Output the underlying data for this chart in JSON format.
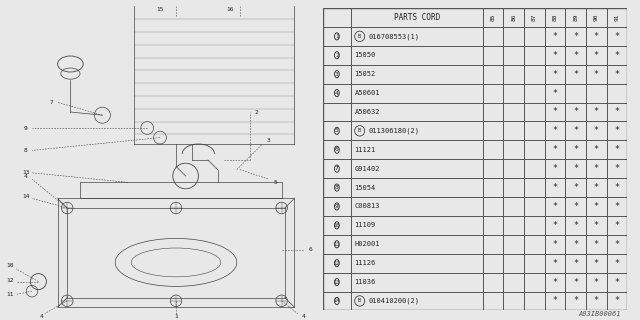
{
  "watermark": "A03IB00061",
  "years": [
    "85",
    "86",
    "87",
    "88",
    "89",
    "90",
    "91"
  ],
  "rows": [
    {
      "num": "1",
      "b": true,
      "part": "016708553(1)",
      "cols": [
        "",
        "",
        "",
        "*",
        "*",
        "*",
        "*"
      ]
    },
    {
      "num": "2",
      "b": false,
      "part": "15050",
      "cols": [
        "",
        "",
        "",
        "*",
        "*",
        "*",
        "*"
      ]
    },
    {
      "num": "3",
      "b": false,
      "part": "15052",
      "cols": [
        "",
        "",
        "",
        "*",
        "*",
        "*",
        "*"
      ]
    },
    {
      "num": "4",
      "b": false,
      "part": "A50601",
      "cols": [
        "",
        "",
        "",
        "*",
        "",
        "",
        ""
      ],
      "sub": false
    },
    {
      "num": "",
      "b": false,
      "part": "A50632",
      "cols": [
        "",
        "",
        "",
        "*",
        "*",
        "*",
        "*"
      ],
      "sub": true
    },
    {
      "num": "5",
      "b": true,
      "part": "011306180(2)",
      "cols": [
        "",
        "",
        "",
        "*",
        "*",
        "*",
        "*"
      ]
    },
    {
      "num": "6",
      "b": false,
      "part": "11121",
      "cols": [
        "",
        "",
        "",
        "*",
        "*",
        "*",
        "*"
      ]
    },
    {
      "num": "7",
      "b": false,
      "part": "G91402",
      "cols": [
        "",
        "",
        "",
        "*",
        "*",
        "*",
        "*"
      ]
    },
    {
      "num": "8",
      "b": false,
      "part": "15054",
      "cols": [
        "",
        "",
        "",
        "*",
        "*",
        "*",
        "*"
      ]
    },
    {
      "num": "9",
      "b": false,
      "part": "C00813",
      "cols": [
        "",
        "",
        "",
        "*",
        "*",
        "*",
        "*"
      ]
    },
    {
      "num": "10",
      "b": false,
      "part": "11109",
      "cols": [
        "",
        "",
        "",
        "*",
        "*",
        "*",
        "*"
      ]
    },
    {
      "num": "11",
      "b": false,
      "part": "H02001",
      "cols": [
        "",
        "",
        "",
        "*",
        "*",
        "*",
        "*"
      ]
    },
    {
      "num": "12",
      "b": false,
      "part": "11126",
      "cols": [
        "",
        "",
        "",
        "*",
        "*",
        "*",
        "*"
      ]
    },
    {
      "num": "13",
      "b": false,
      "part": "11036",
      "cols": [
        "",
        "",
        "",
        "*",
        "*",
        "*",
        "*"
      ]
    },
    {
      "num": "14",
      "b": true,
      "part": "010410200(2)",
      "cols": [
        "",
        "",
        "",
        "*",
        "*",
        "*",
        "*"
      ]
    }
  ],
  "bg_color": "#e8e8e8",
  "line_color": "#444444",
  "text_color": "#222222"
}
